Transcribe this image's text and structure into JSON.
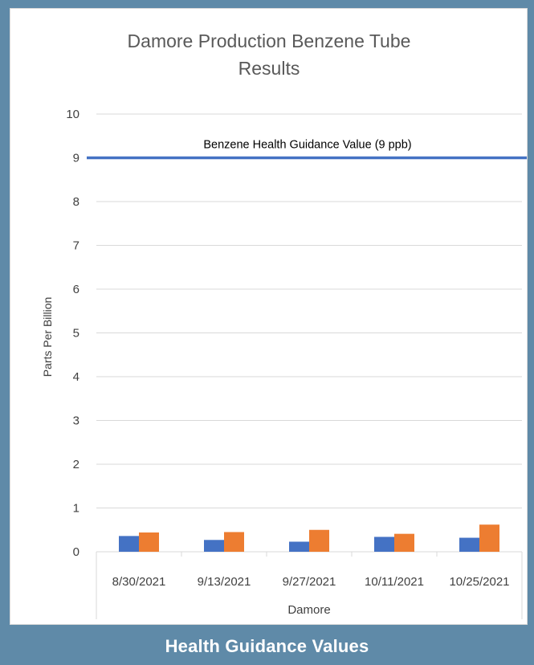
{
  "chart_data": {
    "type": "bar",
    "title": "Damore Production Benzene Tube Results",
    "title_lines": [
      "Damore Production Benzene Tube",
      "Results"
    ],
    "categories": [
      "8/30/2021",
      "9/13/2021",
      "9/27/2021",
      "10/11/2021",
      "10/25/2021"
    ],
    "group_label": "Damore",
    "xlabel": "Damore",
    "ylabel": "Parts Per Billion",
    "ylim": [
      0,
      10
    ],
    "yticks": [
      0,
      1,
      2,
      3,
      4,
      5,
      6,
      7,
      8,
      9,
      10
    ],
    "grid": true,
    "legend": "none",
    "series": [
      {
        "color": "#4472c4",
        "values": [
          0.36,
          0.27,
          0.23,
          0.34,
          0.32
        ]
      },
      {
        "color": "#ed7d31",
        "values": [
          0.44,
          0.45,
          0.5,
          0.41,
          0.62
        ]
      }
    ],
    "reference_line": {
      "value": 9,
      "label": "Benzene Health Guidance Value (9 ppb)",
      "color": "#4472c4"
    }
  },
  "footer": {
    "title": "Health Guidance Values"
  }
}
